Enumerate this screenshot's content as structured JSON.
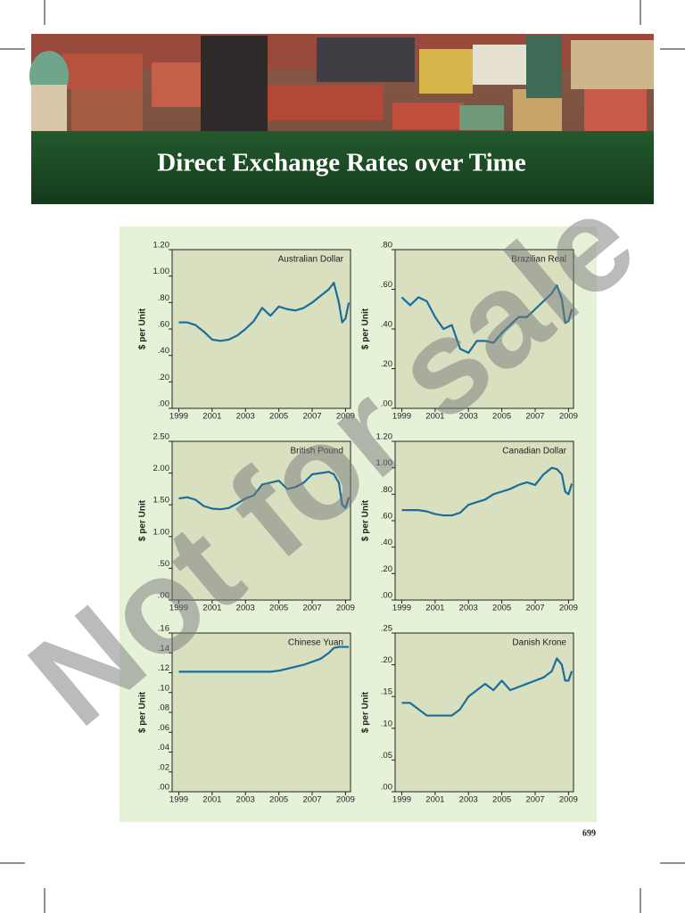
{
  "header": {
    "title": "Direct Exchange Rates over Time"
  },
  "watermark": "Not for sale",
  "page_number": "699",
  "chart_data": [
    {
      "type": "line",
      "title": "Australian Dollar",
      "y_label": "$ per Unit",
      "x": [
        1999,
        1999.5,
        2000,
        2000.5,
        2001,
        2001.5,
        2002,
        2002.5,
        2003,
        2003.5,
        2004,
        2004.5,
        2005,
        2005.5,
        2006,
        2006.5,
        2007,
        2007.5,
        2008,
        2008.3,
        2008.6,
        2008.8,
        2009,
        2009.2
      ],
      "values": [
        0.65,
        0.65,
        0.63,
        0.58,
        0.52,
        0.51,
        0.52,
        0.55,
        0.6,
        0.66,
        0.76,
        0.7,
        0.77,
        0.75,
        0.74,
        0.76,
        0.8,
        0.85,
        0.9,
        0.95,
        0.8,
        0.65,
        0.68,
        0.8
      ],
      "color": "#1a6e99",
      "xlim": [
        1998.6,
        2009.3
      ],
      "xticks": [
        1999,
        2001,
        2003,
        2005,
        2007,
        2009
      ],
      "ylim": [
        0,
        1.2
      ],
      "yticks": [
        {
          "value": 0,
          "label": ".00"
        },
        {
          "value": 0.2,
          "label": ".20"
        },
        {
          "value": 0.4,
          "label": ".40"
        },
        {
          "value": 0.6,
          "label": ".60"
        },
        {
          "value": 0.8,
          "label": ".80"
        },
        {
          "value": 1,
          "label": "1.00"
        },
        {
          "value": 1.2,
          "label": "1.20"
        }
      ]
    },
    {
      "type": "line",
      "title": "Brazilian Real",
      "y_label": "$ per Unit",
      "x": [
        1999,
        1999.5,
        2000,
        2000.5,
        2001,
        2001.5,
        2002,
        2002.5,
        2003,
        2003.5,
        2004,
        2004.5,
        2005,
        2005.5,
        2006,
        2006.5,
        2007,
        2007.5,
        2008,
        2008.3,
        2008.6,
        2008.8,
        2009,
        2009.2
      ],
      "values": [
        0.56,
        0.52,
        0.56,
        0.54,
        0.46,
        0.4,
        0.42,
        0.3,
        0.28,
        0.34,
        0.34,
        0.33,
        0.38,
        0.42,
        0.46,
        0.46,
        0.5,
        0.54,
        0.58,
        0.62,
        0.55,
        0.43,
        0.44,
        0.5
      ],
      "color": "#1a6e99",
      "xlim": [
        1998.6,
        2009.3
      ],
      "xticks": [
        1999,
        2001,
        2003,
        2005,
        2007,
        2009
      ],
      "ylim": [
        0,
        0.8
      ],
      "yticks": [
        {
          "value": 0,
          "label": ".00"
        },
        {
          "value": 0.2,
          "label": ".20"
        },
        {
          "value": 0.4,
          "label": ".40"
        },
        {
          "value": 0.6,
          "label": ".60"
        },
        {
          "value": 0.8,
          "label": ".80"
        }
      ]
    },
    {
      "type": "line",
      "title": "British Pound",
      "y_label": "$ per Unit",
      "x": [
        1999,
        1999.5,
        2000,
        2000.5,
        2001,
        2001.5,
        2002,
        2002.5,
        2003,
        2003.5,
        2004,
        2004.5,
        2005,
        2005.5,
        2006,
        2006.5,
        2007,
        2007.5,
        2008,
        2008.3,
        2008.6,
        2008.8,
        2009,
        2009.2
      ],
      "values": [
        1.6,
        1.62,
        1.58,
        1.48,
        1.44,
        1.43,
        1.45,
        1.52,
        1.6,
        1.65,
        1.82,
        1.85,
        1.88,
        1.75,
        1.78,
        1.85,
        1.98,
        2.0,
        2.02,
        1.98,
        1.85,
        1.5,
        1.45,
        1.62
      ],
      "color": "#1a6e99",
      "xlim": [
        1998.6,
        2009.3
      ],
      "xticks": [
        1999,
        2001,
        2003,
        2005,
        2007,
        2009
      ],
      "ylim": [
        0,
        2.5
      ],
      "yticks": [
        {
          "value": 0,
          "label": ".00"
        },
        {
          "value": 0.5,
          "label": ".50"
        },
        {
          "value": 1,
          "label": "1.00"
        },
        {
          "value": 1.5,
          "label": "1.50"
        },
        {
          "value": 2,
          "label": "2.00"
        },
        {
          "value": 2.5,
          "label": "2.50"
        }
      ]
    },
    {
      "type": "line",
      "title": "Canadian Dollar",
      "y_label": "$ per Unit",
      "x": [
        1999,
        1999.5,
        2000,
        2000.5,
        2001,
        2001.5,
        2002,
        2002.5,
        2003,
        2003.5,
        2004,
        2004.5,
        2005,
        2005.5,
        2006,
        2006.5,
        2007,
        2007.5,
        2008,
        2008.3,
        2008.6,
        2008.8,
        2009,
        2009.2
      ],
      "values": [
        0.68,
        0.68,
        0.68,
        0.67,
        0.65,
        0.64,
        0.64,
        0.66,
        0.72,
        0.74,
        0.76,
        0.8,
        0.82,
        0.84,
        0.87,
        0.89,
        0.87,
        0.95,
        1.0,
        0.99,
        0.95,
        0.82,
        0.8,
        0.88
      ],
      "color": "#1a6e99",
      "xlim": [
        1998.6,
        2009.3
      ],
      "xticks": [
        1999,
        2001,
        2003,
        2005,
        2007,
        2009
      ],
      "ylim": [
        0,
        1.2
      ],
      "yticks": [
        {
          "value": 0,
          "label": ".00"
        },
        {
          "value": 0.2,
          "label": ".20"
        },
        {
          "value": 0.4,
          "label": ".40"
        },
        {
          "value": 0.6,
          "label": ".60"
        },
        {
          "value": 0.8,
          "label": ".80"
        },
        {
          "value": 1,
          "label": "1.00"
        },
        {
          "value": 1.2,
          "label": "1.20"
        }
      ]
    },
    {
      "type": "line",
      "title": "Chinese Yuan",
      "y_label": "$ per Unit",
      "x": [
        1999,
        1999.5,
        2000,
        2000.5,
        2001,
        2001.5,
        2002,
        2002.5,
        2003,
        2003.5,
        2004,
        2004.5,
        2005,
        2005.5,
        2006,
        2006.5,
        2007,
        2007.5,
        2008,
        2008.3,
        2008.6,
        2008.8,
        2009,
        2009.2
      ],
      "values": [
        0.121,
        0.121,
        0.121,
        0.121,
        0.121,
        0.121,
        0.121,
        0.121,
        0.121,
        0.121,
        0.121,
        0.121,
        0.122,
        0.124,
        0.126,
        0.128,
        0.131,
        0.134,
        0.14,
        0.145,
        0.146,
        0.146,
        0.146,
        0.146
      ],
      "color": "#1a6e99",
      "xlim": [
        1998.6,
        2009.3
      ],
      "xticks": [
        1999,
        2001,
        2003,
        2005,
        2007,
        2009
      ],
      "ylim": [
        0,
        0.16
      ],
      "yticks": [
        {
          "value": 0,
          "label": ".00"
        },
        {
          "value": 0.02,
          "label": ".02"
        },
        {
          "value": 0.04,
          "label": ".04"
        },
        {
          "value": 0.06,
          "label": ".06"
        },
        {
          "value": 0.08,
          "label": ".08"
        },
        {
          "value": 0.1,
          "label": ".10"
        },
        {
          "value": 0.12,
          "label": ".12"
        },
        {
          "value": 0.14,
          "label": ".14"
        },
        {
          "value": 0.16,
          "label": ".16"
        }
      ]
    },
    {
      "type": "line",
      "title": "Danish Krone",
      "y_label": "$ per Unit",
      "x": [
        1999,
        1999.5,
        2000,
        2000.5,
        2001,
        2001.5,
        2002,
        2002.5,
        2003,
        2003.5,
        2004,
        2004.5,
        2005,
        2005.5,
        2006,
        2006.5,
        2007,
        2007.5,
        2008,
        2008.3,
        2008.6,
        2008.8,
        2009,
        2009.2
      ],
      "values": [
        0.14,
        0.14,
        0.13,
        0.12,
        0.12,
        0.12,
        0.12,
        0.13,
        0.15,
        0.16,
        0.17,
        0.16,
        0.175,
        0.16,
        0.165,
        0.17,
        0.175,
        0.18,
        0.19,
        0.21,
        0.2,
        0.175,
        0.175,
        0.19
      ],
      "color": "#1a6e99",
      "xlim": [
        1998.6,
        2009.3
      ],
      "xticks": [
        1999,
        2001,
        2003,
        2005,
        2007,
        2009
      ],
      "ylim": [
        0,
        0.25
      ],
      "yticks": [
        {
          "value": 0,
          "label": ".00"
        },
        {
          "value": 0.05,
          "label": ".05"
        },
        {
          "value": 0.1,
          "label": ".10"
        },
        {
          "value": 0.15,
          "label": ".15"
        },
        {
          "value": 0.2,
          "label": ".20"
        },
        {
          "value": 0.25,
          "label": ".25"
        }
      ]
    }
  ]
}
